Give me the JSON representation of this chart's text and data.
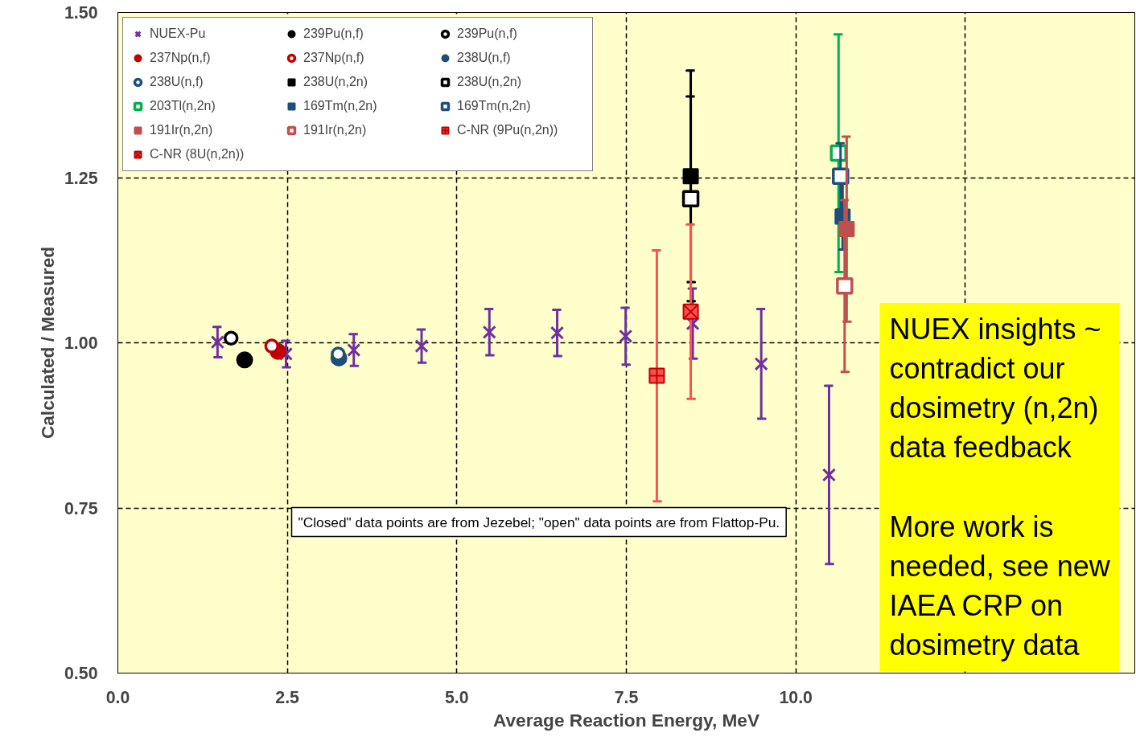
{
  "chart_data": {
    "type": "scatter",
    "xlabel": "Average Reaction Energy, MeV",
    "ylabel": "Calculated / Measured",
    "xlim": [
      0,
      15
    ],
    "ylim": [
      0.5,
      1.5
    ],
    "xticks": [
      {
        "value": 0,
        "label": "0.0"
      },
      2.5,
      {
        "value": 5,
        "label": "5.0"
      },
      7.5,
      {
        "value": 10,
        "label": "10.0"
      },
      {
        "value": 12.5,
        "label": null
      },
      {
        "value": 15,
        "label": null
      }
    ],
    "yticks": [
      {
        "value": 0.5,
        "label": "0.50"
      },
      0.75,
      {
        "value": 1.0,
        "label": "1.00"
      },
      1.25,
      {
        "value": 1.5,
        "label": "1.50"
      }
    ],
    "grid": true,
    "legend": "top left",
    "series": [
      {
        "name": "NUEX-Pu",
        "color": "#7030a0",
        "marker": "cross",
        "x": [
          1.47,
          2.48,
          3.48,
          4.48,
          5.48,
          6.48,
          7.49,
          8.48,
          9.49,
          10.49
        ],
        "values": [
          1.001,
          0.983,
          0.989,
          0.995,
          1.016,
          1.015,
          1.01,
          1.029,
          0.968,
          0.8
        ],
        "errors": [
          0.023,
          0.02,
          0.024,
          0.025,
          0.035,
          0.035,
          0.043,
          0.053,
          0.083,
          0.135
        ]
      },
      {
        "name": "239Pu(n,f)",
        "color": "#000000",
        "marker": "circle",
        "x": [
          1.87
        ],
        "values": [
          0.974
        ]
      },
      {
        "name": "239Pu(n,f)",
        "color": "#000000",
        "colors": [
          "#ffffff"
        ],
        "marker": "circle",
        "x": [
          1.67
        ],
        "values": [
          1.007
        ]
      },
      {
        "name": "237Np(n,f)",
        "color": "#c00000",
        "marker": "circle",
        "x": [
          2.36
        ],
        "values": [
          0.987
        ]
      },
      {
        "name": "237Np(n,f)",
        "color": "#c00000",
        "colors": [
          "#ffffff"
        ],
        "marker": "circle",
        "x": [
          2.27
        ],
        "values": [
          0.995
        ]
      },
      {
        "name": "238U(n,f)",
        "color": "#1f4e79",
        "marker": "circle",
        "x": [
          3.26
        ],
        "values": [
          0.977
        ]
      },
      {
        "name": "238U(n,f)",
        "color": "#1f4e79",
        "colors": [
          "#ffffff"
        ],
        "marker": "circle",
        "x": [
          3.25
        ],
        "values": [
          0.983
        ]
      },
      {
        "name": "238U(n,2n)",
        "color": "#000000",
        "marker": "square",
        "x": [
          8.45
        ],
        "values": [
          1.252
        ],
        "errors": [
          0.16
        ]
      },
      {
        "name": "238U(n,2n)",
        "color": "#000000",
        "colors": [
          "#ffffff"
        ],
        "marker": "square",
        "x": [
          8.45
        ],
        "values": [
          1.218
        ],
        "errors": [
          0.155
        ]
      },
      {
        "name": "203Tl(n,2n)",
        "color": "#00b050",
        "colors": [
          "#ffffff"
        ],
        "marker": "square",
        "x": [
          10.63
        ],
        "values": [
          1.287
        ],
        "errors": [
          0.18
        ]
      },
      {
        "name": "169Tm(n,2n)",
        "color": "#1f4e79",
        "marker": "square",
        "x": [
          10.69
        ],
        "values": [
          1.191
        ],
        "errors": [
          0.05
        ]
      },
      {
        "name": "169Tm(n,2n)",
        "color": "#1f4e79",
        "colors": [
          "#ffffff"
        ],
        "marker": "square",
        "x": [
          10.66
        ],
        "values": [
          1.252
        ],
        "errors": [
          0.05
        ]
      },
      {
        "name": "191Ir(n,2n)",
        "color": "#c0504d",
        "marker": "square",
        "x": [
          10.75
        ],
        "values": [
          1.172
        ],
        "errors": [
          0.14
        ]
      },
      {
        "name": "191Ir(n,2n)",
        "color": "#c0504d",
        "colors": [
          "#ffffff"
        ],
        "marker": "square",
        "x": [
          10.72
        ],
        "values": [
          1.086
        ],
        "errors": [
          0.13
        ]
      },
      {
        "name": "C-NR (9Pu(n,2n))",
        "color": "#ff5050",
        "colors": [
          "#ff5050"
        ],
        "marker": "cross",
        "x": [
          7.95
        ],
        "values": [
          0.95
        ],
        "errors": [
          0.19
        ]
      },
      {
        "name": "C-NR (8U(n,2n))",
        "color": "#ff5050",
        "colors": [
          "#ff5050"
        ],
        "marker": "cross",
        "x": [
          8.45
        ],
        "values": [
          1.047
        ],
        "errors": [
          0.132
        ]
      }
    ],
    "annotations": [
      "\"Closed\" data points are from Jezebel; \"open\" data points are from Flattop-Pu.",
      "NUEX insights ~\ncontradict our\ndosimetry (n,2n)\ndata feedback\n\nMore work is\nneeded, see new\nIAEA CRP on\ndosimetry data"
    ]
  }
}
